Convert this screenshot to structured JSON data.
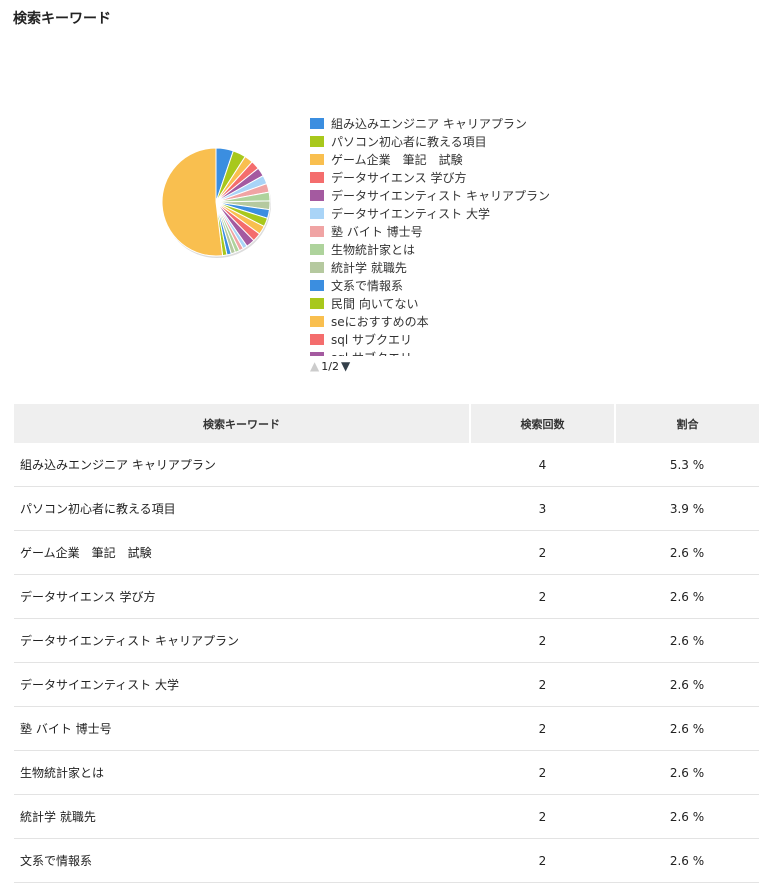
{
  "page": {
    "title": "検索キーワード"
  },
  "chart_data": {
    "type": "pie",
    "slices": [
      {
        "label": "組み込みエンジニア キャリアプラン",
        "value": 4,
        "color": "#3b8ee0"
      },
      {
        "label": "パソコン初心者に教える項目",
        "value": 3,
        "color": "#a8c81c"
      },
      {
        "label": "ゲーム企業　筆記　試験",
        "value": 2,
        "color": "#f9bf4f"
      },
      {
        "label": "データサイエンス 学び方",
        "value": 2,
        "color": "#f46d6d"
      },
      {
        "label": "データサイエンティスト キャリアプラン",
        "value": 2,
        "color": "#a45aa0"
      },
      {
        "label": "データサイエンティスト 大学",
        "value": 2,
        "color": "#a9d4f7"
      },
      {
        "label": "塾 バイト 博士号",
        "value": 2,
        "color": "#f0a4a4"
      },
      {
        "label": "生物統計家とは",
        "value": 2,
        "color": "#aed39c"
      },
      {
        "label": "統計学 就職先",
        "value": 2,
        "color": "#b5c99f"
      },
      {
        "label": "文系で情報系",
        "value": 2,
        "color": "#3b8ee0"
      },
      {
        "label": "民間 向いてない",
        "value": 2,
        "color": "#a8c81c"
      },
      {
        "label": "seにおすすめの本",
        "value": 2,
        "color": "#f9bf4f"
      },
      {
        "label": "sql サブクエリ",
        "value": 2,
        "color": "#f46d6d"
      },
      {
        "label": "sql サブクエリ",
        "value": 2,
        "color": "#a45aa0"
      },
      {
        "label": "",
        "value": 1,
        "color": "#a9d4f7"
      },
      {
        "label": "",
        "value": 1,
        "color": "#f0a4a4"
      },
      {
        "label": "",
        "value": 1,
        "color": "#aed39c"
      },
      {
        "label": "",
        "value": 1,
        "color": "#b5c99f"
      },
      {
        "label": "",
        "value": 1,
        "color": "#3b8ee0"
      },
      {
        "label": "",
        "value": 1,
        "color": "#a8c81c"
      },
      {
        "label": "",
        "value": 40,
        "color": "#f9bf4f"
      }
    ],
    "legend_position": "right",
    "legend_page": "1/2"
  },
  "table": {
    "headers": [
      "検索キーワード",
      "検索回数",
      "割合"
    ],
    "rows": [
      {
        "keyword": "組み込みエンジニア キャリアプラン",
        "count": "4",
        "ratio": "5.3 %"
      },
      {
        "keyword": "パソコン初心者に教える項目",
        "count": "3",
        "ratio": "3.9 %"
      },
      {
        "keyword": "ゲーム企業　筆記　試験",
        "count": "2",
        "ratio": "2.6 %"
      },
      {
        "keyword": "データサイエンス 学び方",
        "count": "2",
        "ratio": "2.6 %"
      },
      {
        "keyword": "データサイエンティスト キャリアプラン",
        "count": "2",
        "ratio": "2.6 %"
      },
      {
        "keyword": "データサイエンティスト 大学",
        "count": "2",
        "ratio": "2.6 %"
      },
      {
        "keyword": "塾 バイト 博士号",
        "count": "2",
        "ratio": "2.6 %"
      },
      {
        "keyword": "生物統計家とは",
        "count": "2",
        "ratio": "2.6 %"
      },
      {
        "keyword": "統計学 就職先",
        "count": "2",
        "ratio": "2.6 %"
      },
      {
        "keyword": "文系で情報系",
        "count": "2",
        "ratio": "2.6 %"
      }
    ]
  }
}
